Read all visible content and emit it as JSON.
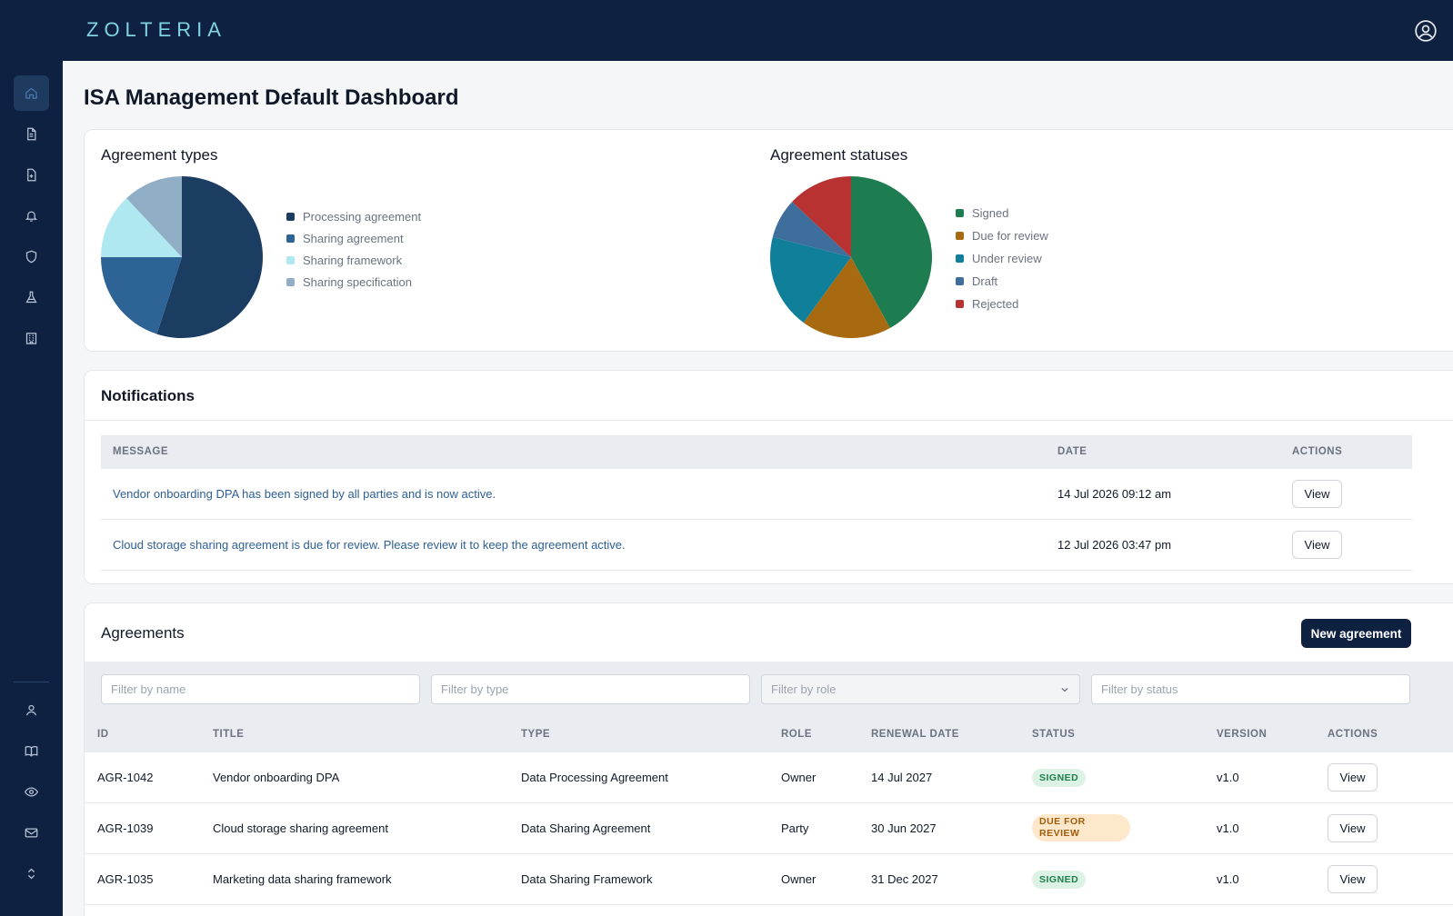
{
  "app": {
    "logo_text": "ZOLTERIA"
  },
  "page": {
    "title": "ISA Management Default Dashboard"
  },
  "colors": {
    "nav_bg": "#0e2140",
    "accent": "#0e2140",
    "signed": "#1e7d50",
    "due_for_review": "#a86a10",
    "under_review": "#107f99",
    "draft": "#3e6e9c",
    "rejected": "#b83232"
  },
  "sidebar": {
    "top_items": [
      {
        "icon": "home-icon",
        "active": true
      },
      {
        "icon": "document-icon"
      },
      {
        "icon": "document-plus-icon"
      },
      {
        "icon": "bell-icon"
      },
      {
        "icon": "shield-icon"
      },
      {
        "icon": "flask-icon"
      },
      {
        "icon": "building-icon"
      }
    ],
    "bottom_items": [
      {
        "icon": "user-icon"
      },
      {
        "icon": "book-icon"
      },
      {
        "icon": "eye-icon"
      },
      {
        "icon": "mail-icon"
      },
      {
        "icon": "chevron-up-down-icon"
      }
    ]
  },
  "types_card": {
    "title": "Agreement types"
  },
  "statuses_card": {
    "title": "Agreement statuses"
  },
  "chart_data": [
    {
      "type": "pie",
      "title": "Agreement types",
      "labels": [
        "Processing agreement",
        "Sharing agreement",
        "Sharing framework",
        "Sharing specification"
      ],
      "values": [
        55,
        20,
        13,
        12
      ],
      "colors": [
        "#1c3d62",
        "#2e6395",
        "#b0e8f2",
        "#91aec7"
      ],
      "legend": "right"
    },
    {
      "type": "pie",
      "title": "Agreement statuses",
      "labels": [
        "Signed",
        "Due for review",
        "Under review",
        "Draft",
        "Rejected"
      ],
      "values": [
        42,
        18,
        19,
        8,
        13
      ],
      "colors": [
        "#1e7d50",
        "#a86a10",
        "#107f99",
        "#3e6e9c",
        "#b83232"
      ],
      "legend": "right"
    }
  ],
  "notifications": {
    "title": "Notifications",
    "columns": {
      "message": "MESSAGE",
      "date": "DATE",
      "actions": "ACTIONS"
    },
    "rows": [
      {
        "message": "Vendor onboarding DPA has been signed by all parties and is now active.",
        "date": "14 Jul 2026 09:12 am",
        "action": "View"
      },
      {
        "message": "Cloud storage sharing agreement is due for review. Please review it to keep the agreement active.",
        "date": "12 Jul 2026 03:47 pm",
        "action": "View"
      }
    ]
  },
  "agreements": {
    "title": "Agreements",
    "new_button": "New agreement",
    "filters": {
      "name_placeholder": "Filter by name",
      "type_placeholder": "Filter by type",
      "role_placeholder": "Filter by role",
      "status_placeholder": "Filter by status"
    },
    "columns": {
      "id": "ID",
      "title": "TITLE",
      "type": "TYPE",
      "role": "ROLE",
      "renewal": "RENEWAL DATE",
      "status": "STATUS",
      "version": "VERSION",
      "actions": "ACTIONS"
    },
    "rows": [
      {
        "id": "AGR-1042",
        "title": "Vendor onboarding DPA",
        "type": "Data Processing Agreement",
        "role": "Owner",
        "renewal": "14 Jul 2027",
        "status": "SIGNED",
        "version": "v1.0",
        "action": "View"
      },
      {
        "id": "AGR-1039",
        "title": "Cloud storage sharing agreement",
        "type": "Data Sharing Agreement",
        "role": "Party",
        "renewal": "30 Jun 2027",
        "status": "DUE FOR REVIEW",
        "version": "v1.0",
        "action": "View"
      },
      {
        "id": "AGR-1035",
        "title": "Marketing data sharing framework",
        "type": "Data Sharing Framework",
        "role": "Owner",
        "renewal": "31 Dec 2027",
        "status": "SIGNED",
        "version": "v1.0",
        "action": "View"
      }
    ]
  }
}
